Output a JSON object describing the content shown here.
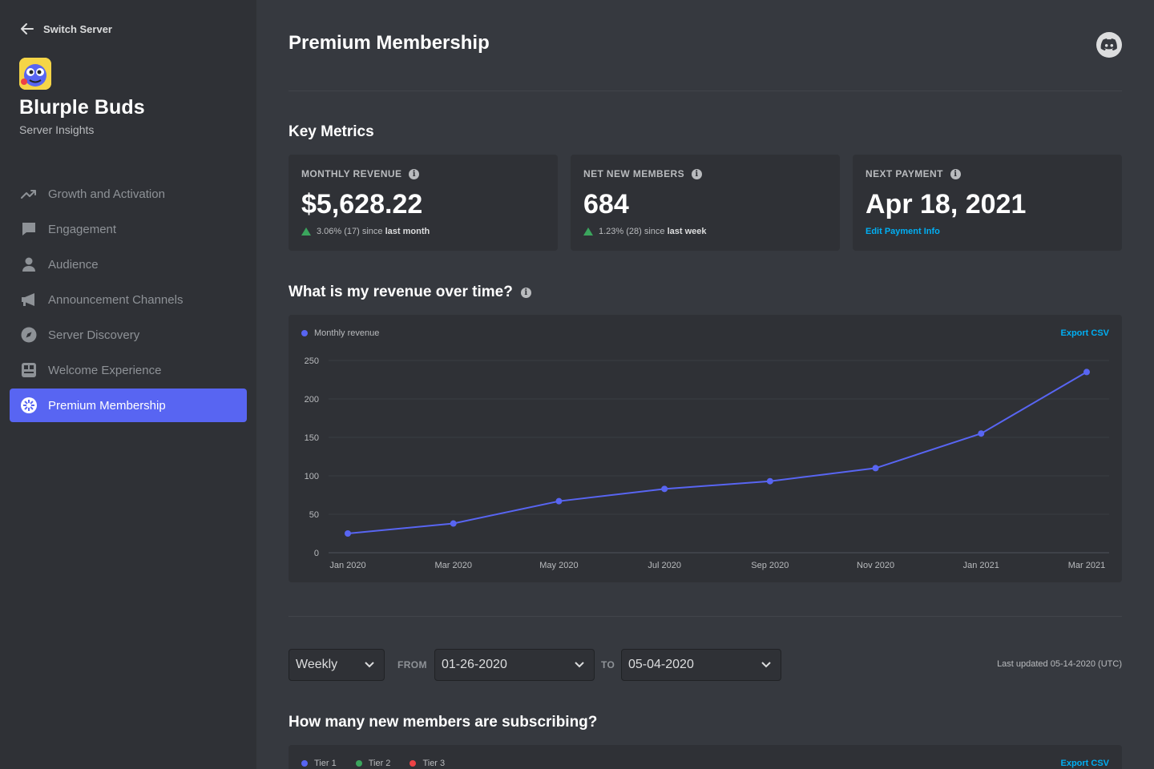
{
  "sidebar": {
    "switch_server": "Switch Server",
    "server_name": "Blurple Buds",
    "server_subtitle": "Server Insights",
    "items": [
      {
        "label": "Growth and Activation",
        "icon": "trend-icon"
      },
      {
        "label": "Engagement",
        "icon": "chat-icon"
      },
      {
        "label": "Audience",
        "icon": "person-icon"
      },
      {
        "label": "Announcement Channels",
        "icon": "megaphone-icon"
      },
      {
        "label": "Server Discovery",
        "icon": "compass-icon"
      },
      {
        "label": "Welcome Experience",
        "icon": "welcome-icon"
      },
      {
        "label": "Premium Membership",
        "icon": "premium-icon",
        "active": true
      }
    ]
  },
  "header": {
    "title": "Premium Membership"
  },
  "key_metrics": {
    "title": "Key Metrics",
    "cards": [
      {
        "label": "MONTHLY REVENUE",
        "value": "$5,628.22",
        "change": "3.06% (17) since",
        "period": "last month"
      },
      {
        "label": "NET NEW MEMBERS",
        "value": "684",
        "change": "1.23% (28) since",
        "period": "last week"
      },
      {
        "label": "NEXT PAYMENT",
        "value": "Apr 18, 2021",
        "link": "Edit Payment Info"
      }
    ]
  },
  "revenue_section": {
    "title": "What is my revenue over time?",
    "export": "Export CSV"
  },
  "chart_data": {
    "type": "line",
    "x": [
      "Jan 2020",
      "Mar 2020",
      "May 2020",
      "Jul 2020",
      "Sep 2020",
      "Nov 2020",
      "Jan 2021",
      "Mar 2021"
    ],
    "series": [
      {
        "name": "Monthly revenue",
        "values": [
          25,
          38,
          67,
          83,
          93,
          110,
          155,
          235
        ]
      }
    ],
    "yticks": [
      0,
      50,
      100,
      150,
      200,
      250
    ],
    "ylim": [
      0,
      250
    ],
    "grid": true,
    "legend": "top-left",
    "color": "#5865f2"
  },
  "filters": {
    "interval": "Weekly",
    "from_label": "FROM",
    "from_value": "01-26-2020",
    "to_label": "TO",
    "to_value": "05-04-2020",
    "last_updated": "Last updated 05-14-2020 (UTC)"
  },
  "subscribers_section": {
    "title": "How many new members are subscribing?",
    "export": "Export CSV",
    "legend": [
      {
        "name": "Tier 1",
        "color": "#5865f2"
      },
      {
        "name": "Tier 2",
        "color": "#3ba55d"
      },
      {
        "name": "Tier 3",
        "color": "#ed4245"
      }
    ]
  }
}
